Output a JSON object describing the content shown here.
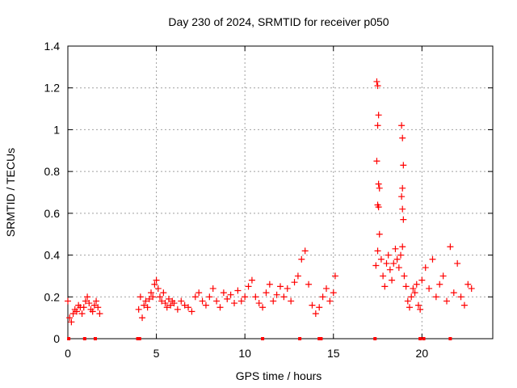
{
  "chart_data": {
    "type": "scatter",
    "title": "Day 230 of 2024, SRMTID for receiver p050",
    "xlabel": "GPS time / hours",
    "ylabel": "SRMTID / TECUs",
    "xlim": [
      0,
      24
    ],
    "ylim": [
      0,
      1.4
    ],
    "x_ticks": [
      0,
      5,
      10,
      15,
      20
    ],
    "x_tick_labels": [
      "0",
      "5",
      "10",
      "15",
      "20"
    ],
    "y_ticks": [
      0,
      0.2,
      0.4,
      0.6,
      0.8,
      1.0,
      1.2,
      1.4
    ],
    "y_tick_labels": [
      "0",
      "0.2",
      "0.4",
      "0.6",
      "0.8",
      "1",
      "1.2",
      "1.4"
    ],
    "grid": true,
    "marker": "+",
    "color": "#ff0000",
    "series": [
      {
        "name": "SRMTID",
        "x": [
          0.0,
          0.1,
          0.2,
          0.3,
          0.4,
          0.5,
          0.6,
          0.7,
          0.8,
          0.9,
          1.0,
          1.1,
          1.2,
          1.3,
          1.4,
          1.5,
          1.6,
          1.7,
          1.8,
          4.0,
          4.1,
          4.2,
          4.3,
          4.4,
          4.5,
          4.6,
          4.7,
          4.8,
          4.9,
          5.0,
          5.1,
          5.2,
          5.3,
          5.4,
          5.5,
          5.6,
          5.7,
          5.8,
          5.9,
          6.0,
          6.2,
          6.4,
          6.6,
          6.8,
          7.0,
          7.2,
          7.4,
          7.6,
          7.8,
          8.0,
          8.2,
          8.4,
          8.6,
          8.8,
          9.0,
          9.2,
          9.4,
          9.6,
          9.8,
          10.0,
          10.2,
          10.4,
          10.6,
          10.8,
          11.0,
          11.2,
          11.4,
          11.6,
          11.8,
          12.0,
          12.2,
          12.4,
          12.6,
          12.8,
          13.0,
          13.2,
          13.4,
          13.6,
          13.8,
          14.0,
          14.2,
          14.4,
          14.6,
          14.8,
          15.0,
          15.1,
          17.4,
          17.5,
          17.6,
          17.7,
          17.8,
          17.9,
          18.0,
          18.1,
          18.2,
          18.3,
          18.4,
          18.5,
          18.6,
          18.7,
          18.8,
          18.9,
          19.0,
          19.1,
          19.2,
          19.3,
          19.4,
          19.5,
          19.6,
          19.7,
          19.8,
          19.9,
          20.0,
          20.2,
          20.4,
          20.6,
          20.8,
          21.0,
          21.2,
          21.4,
          21.6,
          21.8,
          22.0,
          22.2,
          22.4,
          22.6,
          22.8,
          17.45,
          17.5,
          17.55,
          17.5,
          17.45,
          17.55,
          17.6,
          17.5,
          17.55,
          18.85,
          18.9,
          18.95,
          18.9,
          18.85,
          18.9,
          18.95
        ],
        "y": [
          0.18,
          0.1,
          0.08,
          0.12,
          0.14,
          0.13,
          0.16,
          0.15,
          0.12,
          0.15,
          0.18,
          0.2,
          0.17,
          0.14,
          0.13,
          0.16,
          0.18,
          0.15,
          0.12,
          0.14,
          0.2,
          0.1,
          0.16,
          0.18,
          0.15,
          0.19,
          0.22,
          0.2,
          0.26,
          0.28,
          0.24,
          0.2,
          0.18,
          0.22,
          0.17,
          0.15,
          0.19,
          0.16,
          0.18,
          0.17,
          0.14,
          0.18,
          0.16,
          0.15,
          0.13,
          0.2,
          0.22,
          0.18,
          0.16,
          0.2,
          0.24,
          0.18,
          0.15,
          0.22,
          0.19,
          0.21,
          0.17,
          0.23,
          0.18,
          0.2,
          0.25,
          0.28,
          0.2,
          0.17,
          0.15,
          0.22,
          0.26,
          0.18,
          0.21,
          0.25,
          0.2,
          0.24,
          0.18,
          0.27,
          0.3,
          0.38,
          0.42,
          0.26,
          0.16,
          0.12,
          0.15,
          0.2,
          0.24,
          0.18,
          0.22,
          0.3,
          0.35,
          0.42,
          0.5,
          0.38,
          0.3,
          0.25,
          0.36,
          0.4,
          0.33,
          0.28,
          0.36,
          0.43,
          0.38,
          0.34,
          0.4,
          0.44,
          0.3,
          0.25,
          0.18,
          0.15,
          0.2,
          0.24,
          0.22,
          0.26,
          0.16,
          0.14,
          0.28,
          0.34,
          0.24,
          0.38,
          0.2,
          0.26,
          0.3,
          0.18,
          0.44,
          0.22,
          0.36,
          0.2,
          0.16,
          0.26,
          0.24,
          1.23,
          1.21,
          1.07,
          1.02,
          0.85,
          0.74,
          0.72,
          0.64,
          0.63,
          1.02,
          0.96,
          0.83,
          0.72,
          0.68,
          0.62,
          0.57
        ]
      }
    ],
    "gap_markers_x": [
      0.05,
      0.95,
      1.55,
      3.95,
      4.05,
      11.0,
      13.1,
      14.2,
      14.3,
      17.35,
      19.9,
      20.1,
      21.6
    ]
  }
}
